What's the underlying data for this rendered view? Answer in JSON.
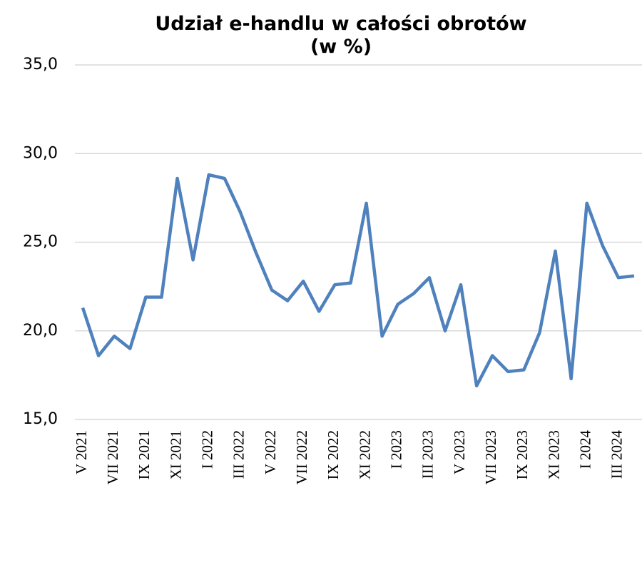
{
  "chart_data": {
    "type": "line",
    "title": "Udział e-handlu w całości obrotów",
    "subtitle": "(w %)",
    "categories": [
      "V 2021",
      null,
      "VII 2021",
      null,
      "IX 2021",
      null,
      "XI 2021",
      null,
      "I 2022",
      null,
      "III 2022",
      null,
      "V 2022",
      null,
      "VII 2022",
      null,
      "IX 2022",
      null,
      "XI 2022",
      null,
      "I 2023",
      null,
      "III 2023",
      null,
      "V 2023",
      null,
      "VII 2023",
      null,
      "IX 2023",
      null,
      "XI 2023",
      null,
      "I 2024",
      null,
      "III 2024",
      null
    ],
    "series": [
      {
        "name": "Udział e-handlu",
        "color": "#4f81bd",
        "values": [
          21.3,
          18.6,
          19.7,
          19.0,
          21.9,
          21.9,
          28.6,
          24.0,
          28.8,
          28.6,
          26.7,
          24.4,
          22.3,
          21.7,
          22.8,
          21.1,
          22.6,
          22.7,
          27.2,
          19.7,
          21.5,
          22.1,
          23.0,
          20.0,
          22.6,
          16.9,
          18.6,
          17.7,
          17.8,
          19.9,
          24.5,
          17.3,
          27.2,
          24.8,
          23.0,
          23.1
        ]
      }
    ],
    "ylim": [
      15,
      35
    ],
    "yticks": [
      {
        "value": 15,
        "label": "15,0"
      },
      {
        "value": 20,
        "label": "20,0"
      },
      {
        "value": 25,
        "label": "25,0"
      },
      {
        "value": 30,
        "label": "30,0"
      },
      {
        "value": 35,
        "label": "35,0"
      }
    ],
    "grid": true
  }
}
